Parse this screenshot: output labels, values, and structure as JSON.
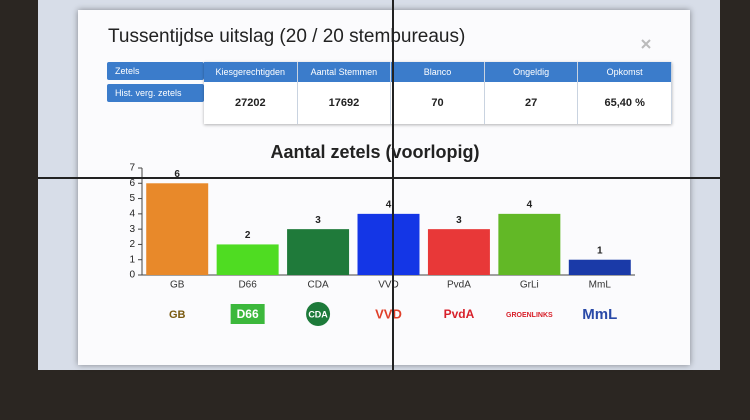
{
  "modal": {
    "title": "Tussentijdse uitslag (20 / 20 stembureaus)",
    "buttons": [
      "Zetels",
      "Hist. verg. zetels"
    ]
  },
  "stats": {
    "headers": [
      "Kiesgerechtigden",
      "Aantal Stemmen",
      "Blanco",
      "Ongeldig",
      "Opkomst"
    ],
    "values": [
      "27202",
      "17692",
      "70",
      "27",
      "65,40 %"
    ]
  },
  "party_logos": [
    "GB",
    "D66",
    "CDA",
    "VVD",
    "PvdA",
    "GROENLINKS",
    "MmL"
  ],
  "chart_data": {
    "type": "bar",
    "title": "Aantal zetels (voorlopig)",
    "categories": [
      "GB",
      "D66",
      "CDA",
      "VVD",
      "PvdA",
      "GrLi",
      "MmL"
    ],
    "values": [
      6,
      2,
      3,
      4,
      3,
      4,
      1
    ],
    "colors": [
      "#e8892a",
      "#4fdc22",
      "#1f7a3a",
      "#1436e6",
      "#e83838",
      "#62b826",
      "#1a3aa8"
    ],
    "ylim": [
      0,
      7
    ],
    "yticks": [
      0,
      1,
      2,
      3,
      4,
      5,
      6,
      7
    ],
    "grid": false
  }
}
